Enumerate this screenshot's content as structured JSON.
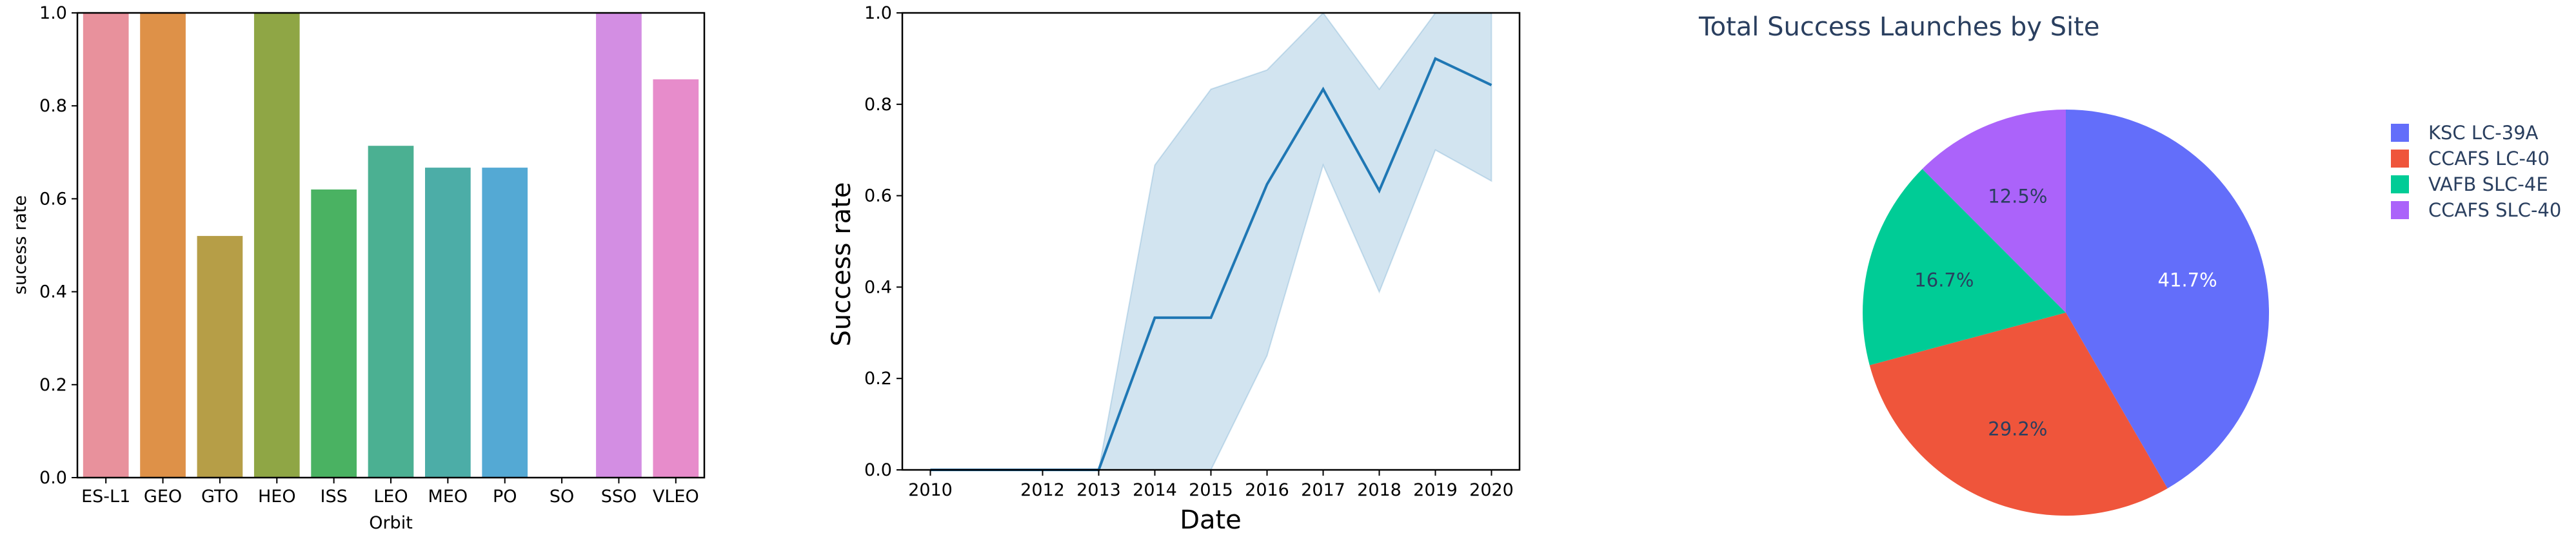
{
  "chart_data": [
    {
      "type": "bar",
      "xlabel": "Orbit",
      "ylabel": "sucess rate",
      "ylim": [
        0,
        1.0
      ],
      "yticks": [
        "0.0",
        "0.2",
        "0.4",
        "0.6",
        "0.8",
        "1.0"
      ],
      "grid": false,
      "categories": [
        "ES-L1",
        "GEO",
        "GTO",
        "HEO",
        "ISS",
        "LEO",
        "MEO",
        "PO",
        "SO",
        "SSO",
        "VLEO"
      ],
      "values": [
        1.0,
        1.0,
        0.52,
        1.0,
        0.62,
        0.714,
        0.667,
        0.667,
        0.0,
        1.0,
        0.857
      ],
      "colors": [
        "#e8919c",
        "#de9148",
        "#b69e47",
        "#8fa645",
        "#4ab262",
        "#4bb092",
        "#4cada7",
        "#54a9d4",
        "#a8a0e8",
        "#d38ee3",
        "#e78ccb"
      ]
    },
    {
      "type": "line",
      "xlabel": "Date",
      "ylabel": "Success rate",
      "ylim": [
        0,
        1.0
      ],
      "yticks": [
        "0.0",
        "0.2",
        "0.4",
        "0.6",
        "0.8",
        "1.0"
      ],
      "grid": false,
      "x": [
        "2010",
        "2012",
        "2013",
        "2014",
        "2015",
        "2016",
        "2017",
        "2018",
        "2019",
        "2020"
      ],
      "y": [
        0.0,
        0.0,
        0.0,
        0.333,
        0.333,
        0.625,
        0.833,
        0.611,
        0.9,
        0.842
      ],
      "ci_low": [
        0.0,
        0.0,
        0.0,
        0.0,
        0.0,
        0.25,
        0.667,
        0.389,
        0.7,
        0.632
      ],
      "ci_high": [
        0.0,
        0.0,
        0.0,
        0.667,
        0.833,
        0.875,
        1.0,
        0.833,
        1.0,
        1.0
      ],
      "xticks": [
        "2010",
        "2012",
        "2013",
        "2014",
        "2015",
        "2016",
        "2017",
        "2018",
        "2019",
        "2020"
      ],
      "line_color": "#1f77b4",
      "band_color": "#1f77b4"
    },
    {
      "type": "pie",
      "title": "Total Success Launches by Site",
      "labels": [
        "KSC LC-39A",
        "CCAFS LC-40",
        "VAFB SLC-4E",
        "CCAFS SLC-40"
      ],
      "values": [
        41.7,
        29.2,
        16.7,
        12.5
      ],
      "value_labels": [
        "41.7%",
        "29.2%",
        "16.7%",
        "12.5%"
      ],
      "colors": [
        "#636efa",
        "#ef553b",
        "#00cc96",
        "#ab63fa"
      ],
      "label_colors": [
        "#ffffff",
        "#2a3f5f",
        "#2a3f5f",
        "#2a3f5f"
      ],
      "legend": "right"
    }
  ]
}
